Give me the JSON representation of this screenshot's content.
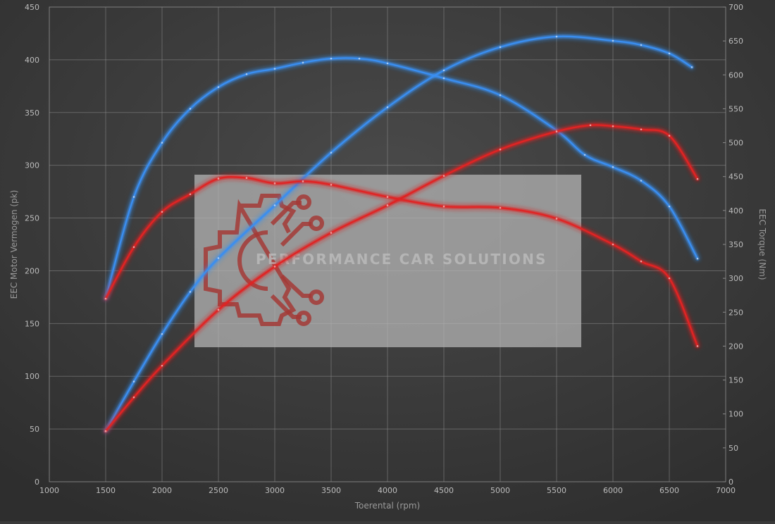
{
  "chart_data": {
    "type": "line",
    "title": "",
    "xlabel": "Toerental (rpm)",
    "ylabel_left": "EEC Motor Vermogen (pk)",
    "ylabel_right": "EEC Torque (Nm)",
    "xlim": [
      1000,
      7000
    ],
    "xticks": [
      "1000",
      "1500",
      "2000",
      "2500",
      "3000",
      "3500",
      "4000",
      "4500",
      "5000",
      "5500",
      "6000",
      "6500",
      "7000"
    ],
    "ylim_left": [
      0,
      450
    ],
    "yticks_left": [
      "0",
      "50",
      "100",
      "150",
      "200",
      "250",
      "300",
      "350",
      "400",
      "450"
    ],
    "ylim_right": [
      0,
      700
    ],
    "yticks_right": [
      "0",
      "50",
      "100",
      "150",
      "200",
      "250",
      "300",
      "350",
      "400",
      "450",
      "500",
      "550",
      "600",
      "650",
      "700"
    ],
    "grid": true,
    "legend": "none",
    "series": [
      {
        "color": "#3a8ef0",
        "axis": "left",
        "x": [
          1500,
          1750,
          2000,
          2250,
          2500,
          3000,
          3500,
          4000,
          4500,
          5000,
          5500,
          6000,
          6250,
          6500,
          6700
        ],
        "values": [
          48,
          95,
          140,
          180,
          212,
          262,
          312,
          355,
          390,
          412,
          422,
          418,
          414,
          406,
          393
        ]
      },
      {
        "color": "#3a8ef0",
        "axis": "right",
        "x": [
          1500,
          1750,
          2000,
          2250,
          2500,
          2750,
          3000,
          3250,
          3500,
          3750,
          4000,
          4500,
          5000,
          5500,
          5750,
          6000,
          6250,
          6500,
          6750
        ],
        "values": [
          270,
          420,
          500,
          550,
          582,
          601,
          609,
          618,
          624,
          624,
          617,
          595,
          570,
          518,
          482,
          464,
          444,
          406,
          329
        ]
      },
      {
        "color": "#e02424",
        "axis": "left",
        "x": [
          1500,
          1750,
          2000,
          2500,
          3000,
          3500,
          4000,
          4500,
          5000,
          5500,
          5800,
          6000,
          6250,
          6500,
          6750
        ],
        "values": [
          48,
          80,
          110,
          163,
          204,
          236,
          262,
          290,
          315,
          332,
          338,
          337,
          334,
          328,
          287
        ]
      },
      {
        "color": "#e02424",
        "axis": "right",
        "x": [
          1500,
          1750,
          2000,
          2250,
          2500,
          2750,
          3000,
          3250,
          3500,
          4000,
          4500,
          5000,
          5500,
          6000,
          6250,
          6500,
          6750
        ],
        "values": [
          270,
          346,
          398,
          424,
          447,
          448,
          440,
          443,
          438,
          420,
          406,
          404,
          388,
          350,
          325,
          300,
          200
        ]
      }
    ],
    "watermark": "PERFORMANCE CAR SOLUTIONS"
  }
}
